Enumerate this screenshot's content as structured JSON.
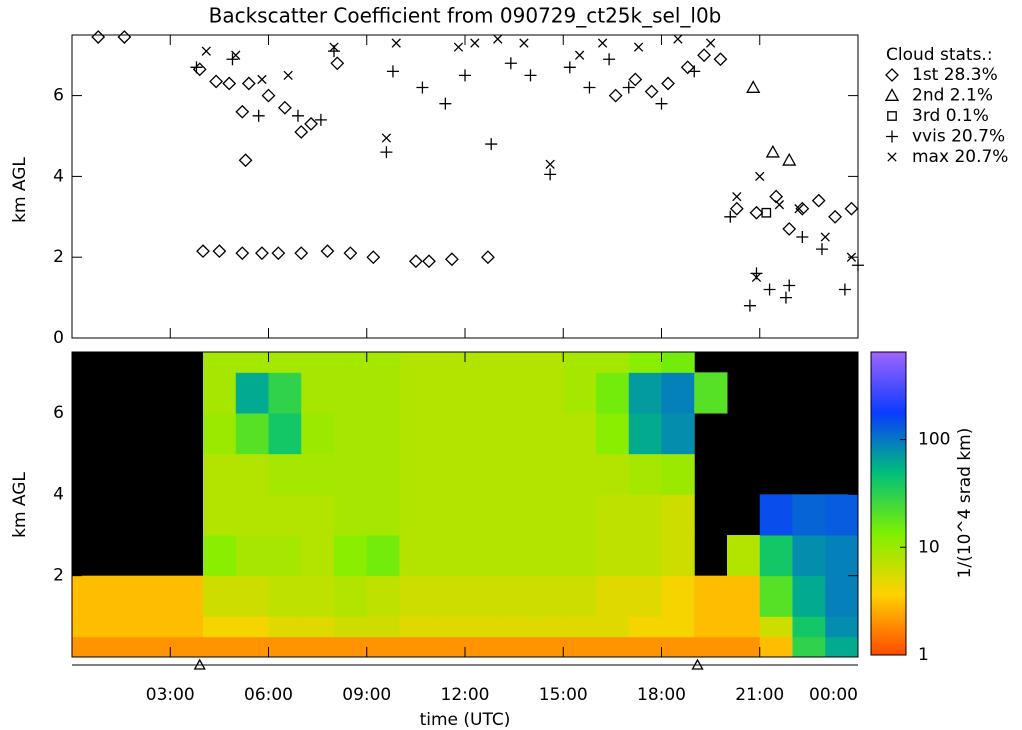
{
  "chart_data": [
    {
      "type": "scatter",
      "title": "Backscatter Coefficient from 090729_ct25k_sel_l0b",
      "ylabel": "km AGL",
      "legend_title": "Cloud stats.:",
      "legend": "right",
      "xlim": [
        0,
        24
      ],
      "ylim": [
        0,
        7.5
      ],
      "yticks": [
        0,
        2,
        4,
        6
      ],
      "xticks": [
        {
          "value": 3,
          "label": "03:00"
        },
        {
          "value": 6,
          "label": "06:00"
        },
        {
          "value": 9,
          "label": "09:00"
        },
        {
          "value": 12,
          "label": "12:00"
        },
        {
          "value": 15,
          "label": "15:00"
        },
        {
          "value": 18,
          "label": "18:00"
        },
        {
          "value": 21,
          "label": "21:00"
        },
        {
          "value": 24,
          "label": "00:00"
        }
      ],
      "series": [
        {
          "name": "1st 28.3%",
          "marker": "diamond",
          "color": "#000000",
          "x": [
            0.8,
            1.6,
            3.9,
            4.4,
            4.8,
            5.2,
            5.4,
            6.0,
            6.5,
            7.0,
            7.3,
            8.1,
            4.0,
            4.5,
            5.2,
            5.8,
            6.3,
            7.0,
            7.8,
            8.5,
            9.2,
            10.5,
            10.9,
            11.6,
            12.7,
            16.6,
            17.2,
            17.7,
            18.2,
            18.8,
            19.3,
            19.8,
            20.3,
            20.9,
            21.5,
            21.9,
            22.3,
            22.8,
            23.3,
            23.8,
            5.3
          ],
          "values": [
            7.45,
            7.45,
            6.65,
            6.35,
            6.3,
            5.6,
            6.3,
            6.0,
            5.7,
            5.1,
            5.3,
            6.8,
            2.15,
            2.15,
            2.1,
            2.1,
            2.1,
            2.1,
            2.15,
            2.1,
            2.0,
            1.9,
            1.9,
            1.95,
            2.0,
            6.0,
            6.4,
            6.1,
            6.3,
            6.7,
            7.0,
            6.9,
            3.2,
            3.1,
            3.5,
            2.7,
            3.2,
            3.4,
            3.0,
            3.2,
            4.4
          ]
        },
        {
          "name": "2nd  2.1%",
          "marker": "triangle",
          "color": "#000000",
          "x": [
            20.8,
            21.9,
            21.4
          ],
          "values": [
            6.2,
            4.4,
            4.6
          ]
        },
        {
          "name": "3rd  0.1%",
          "marker": "square",
          "color": "#000000",
          "x": [
            21.2
          ],
          "values": [
            3.1
          ]
        },
        {
          "name": "vvis 20.7%",
          "marker": "plus",
          "color": "#000000",
          "x": [
            3.8,
            4.9,
            5.7,
            6.9,
            7.6,
            8.0,
            9.6,
            9.8,
            10.7,
            11.4,
            12.0,
            12.8,
            13.4,
            14.0,
            14.6,
            15.2,
            15.8,
            16.4,
            17.0,
            18.0,
            19.0,
            20.1,
            20.9,
            21.3,
            21.8,
            22.3,
            22.9,
            23.6,
            24.0,
            20.7,
            21.9
          ],
          "values": [
            6.7,
            6.9,
            5.5,
            5.5,
            5.4,
            7.1,
            4.6,
            6.6,
            6.2,
            5.8,
            6.5,
            4.8,
            6.8,
            6.5,
            4.05,
            6.7,
            6.2,
            6.9,
            6.2,
            5.8,
            6.6,
            3.0,
            1.6,
            1.2,
            1.0,
            2.5,
            2.2,
            1.2,
            1.8,
            0.8,
            1.3
          ]
        },
        {
          "name": "max 20.7%",
          "marker": "cross",
          "color": "#000000",
          "x": [
            4.1,
            5.0,
            5.8,
            6.6,
            8.0,
            9.6,
            9.9,
            11.8,
            12.3,
            13.0,
            13.8,
            14.6,
            15.5,
            16.2,
            17.3,
            18.5,
            19.5,
            20.3,
            21.0,
            21.6,
            22.2,
            23.0,
            23.8,
            20.9
          ],
          "values": [
            7.1,
            7.0,
            6.4,
            6.5,
            7.2,
            4.95,
            7.3,
            7.2,
            7.3,
            7.4,
            7.3,
            4.3,
            7.0,
            7.3,
            7.2,
            7.4,
            7.3,
            3.5,
            4.0,
            3.3,
            3.2,
            2.5,
            2.0,
            1.5
          ]
        }
      ]
    },
    {
      "type": "heatmap",
      "ylabel": "km AGL",
      "xlabel": "time (UTC)",
      "xlim": [
        0,
        24
      ],
      "ylim": [
        0,
        7.5
      ],
      "yticks": [
        2,
        4,
        6
      ],
      "xticks": [
        {
          "value": 3,
          "label": "03:00"
        },
        {
          "value": 6,
          "label": "06:00"
        },
        {
          "value": 9,
          "label": "09:00"
        },
        {
          "value": 12,
          "label": "12:00"
        },
        {
          "value": 15,
          "label": "15:00"
        },
        {
          "value": 18,
          "label": "18:00"
        },
        {
          "value": 21,
          "label": "21:00"
        },
        {
          "value": 24,
          "label": "00:00"
        }
      ],
      "markers_x": [
        3.9,
        19.1
      ],
      "xbins": [
        0,
        1,
        2,
        3,
        4,
        5,
        6,
        7,
        8,
        9,
        10,
        11,
        12,
        13,
        14,
        15,
        16,
        17,
        18,
        19,
        20,
        21,
        22,
        23,
        24
      ],
      "ybins": [
        0,
        0.5,
        1,
        2,
        3,
        4,
        5,
        6,
        7,
        7.5
      ],
      "z": [
        [
          2,
          2,
          2,
          2,
          2,
          2,
          2,
          2,
          2,
          2,
          2,
          2,
          2,
          2,
          2,
          2,
          2,
          2,
          2,
          2,
          2,
          3,
          30,
          60
        ],
        [
          3,
          3,
          3,
          3,
          4,
          4,
          5,
          5,
          6,
          6,
          5,
          5,
          5,
          5,
          5,
          5,
          5,
          4,
          4,
          3,
          3,
          6,
          40,
          80
        ],
        [
          3,
          3,
          3,
          3,
          6,
          6,
          7,
          7,
          8,
          7,
          6,
          6,
          6,
          6,
          6,
          6,
          5,
          5,
          4,
          3,
          3,
          20,
          60,
          90
        ],
        [
          null,
          null,
          null,
          null,
          12,
          9,
          9,
          8,
          12,
          15,
          8,
          8,
          8,
          8,
          8,
          8,
          7,
          7,
          6,
          null,
          8,
          40,
          80,
          90
        ],
        [
          null,
          null,
          null,
          null,
          8,
          8,
          8,
          8,
          9,
          9,
          8,
          8,
          8,
          8,
          8,
          8,
          7,
          7,
          6,
          null,
          null,
          150,
          120,
          130
        ],
        [
          null,
          null,
          null,
          null,
          8,
          8,
          9,
          9,
          9,
          9,
          8,
          8,
          8,
          8,
          8,
          8,
          8,
          9,
          10,
          null,
          null,
          null,
          null,
          null
        ],
        [
          null,
          null,
          null,
          null,
          10,
          20,
          40,
          10,
          9,
          9,
          8,
          8,
          8,
          8,
          8,
          8,
          12,
          60,
          80,
          null,
          null,
          null,
          null,
          null
        ],
        [
          null,
          null,
          null,
          null,
          9,
          60,
          30,
          9,
          9,
          9,
          8,
          8,
          8,
          8,
          8,
          9,
          15,
          70,
          90,
          20,
          null,
          null,
          null,
          null
        ],
        [
          null,
          null,
          null,
          null,
          9,
          9,
          9,
          9,
          9,
          9,
          8,
          8,
          8,
          8,
          8,
          9,
          9,
          12,
          15,
          null,
          null,
          null,
          null,
          null
        ]
      ],
      "colorbar_label": "1/(10^4 srad km)",
      "clim": [
        1,
        650
      ],
      "log_scale": true,
      "cticks": [
        1,
        10,
        100
      ],
      "colormap": [
        "#ff4a00",
        "#ffd200",
        "#7ff000",
        "#00c07a",
        "#0a3cff",
        "#a064ff"
      ]
    }
  ]
}
